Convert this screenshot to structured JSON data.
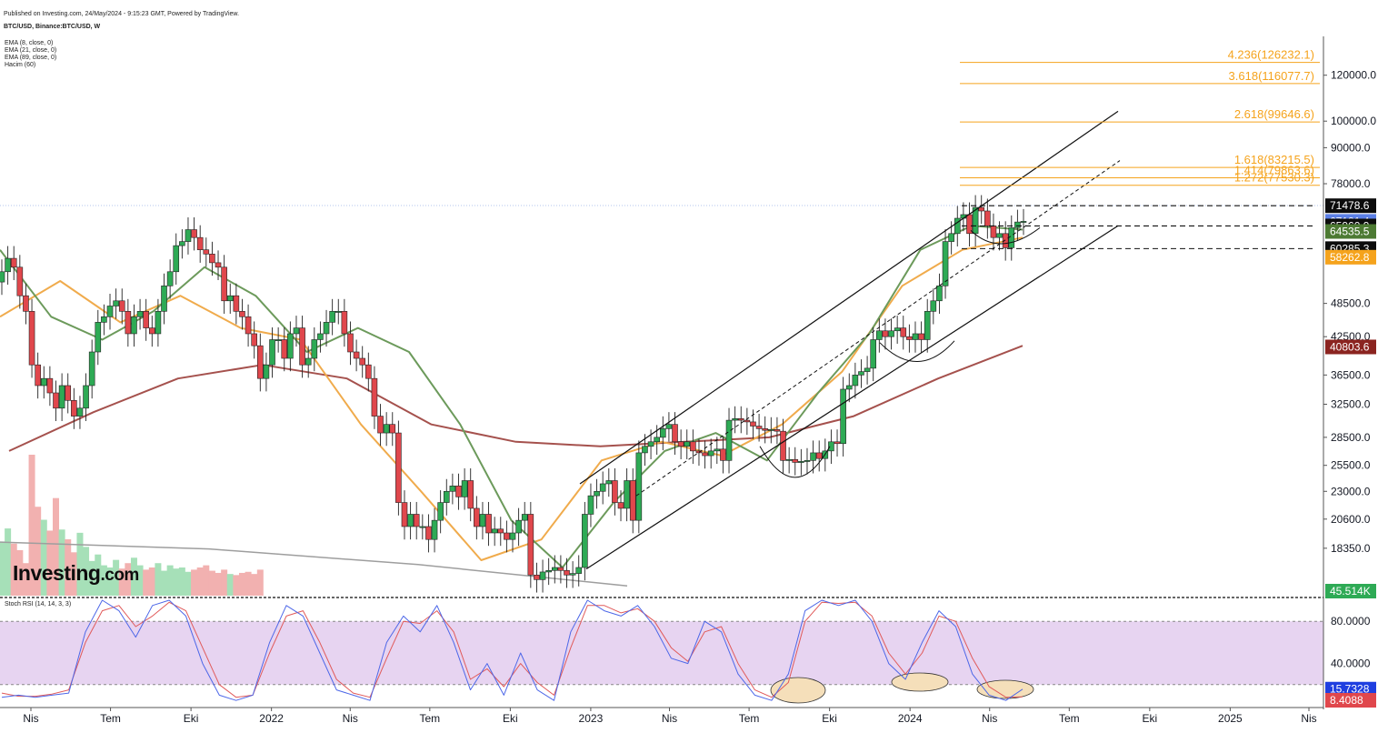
{
  "header": {
    "published": "Published on Investing.com, 24/May/2024 - 9:15:23 GMT, Powered by TradingView.",
    "symbol": "BTC/USD, Binance:BTC/USD, W"
  },
  "indicators": [
    "EMA (8, close, 0)",
    "EMA (21, close, 0)",
    "EMA (89, close, 0)",
    "Hacim (60)"
  ],
  "logo": {
    "text": "Investing",
    "suffix": ".com"
  },
  "rsi_label": "Stoch RSI (14, 14, 3, 3)",
  "colors": {
    "bull": "#2eaa55",
    "bear": "#e0474c",
    "fib": "#f5a31c",
    "ema8": "#6c9a5b",
    "ema21": "#f0ab4c",
    "ema89": "#a5514d",
    "ma200": "#9e9e9e",
    "rsi_k": "#4d67e8",
    "rsi_d": "#e05a5a",
    "rsi_band": "#e3cdef",
    "ellipse": "#f5dfba"
  },
  "chart_data": [
    {
      "type": "candlestick",
      "title": "BTC/USD, Binance:BTC/USD, W",
      "y_scale": "log",
      "ylim": [
        15200,
        140000
      ],
      "y_ticks": [
        "120000.0",
        "100000.0",
        "90000.0",
        "78000.0",
        "48500.0",
        "42500.0",
        "36500.0",
        "32500.0",
        "28500.0",
        "25500.0",
        "23000.0",
        "20600.0",
        "18350.0"
      ],
      "y_tick_values": [
        120000,
        100000,
        90000,
        78000,
        48500,
        42500,
        36500,
        32500,
        28500,
        25500,
        23000,
        20600,
        18350
      ],
      "x_ticks": [
        "Nis",
        "Tem",
        "Eki",
        "2022",
        "Nis",
        "Tem",
        "Eki",
        "2023",
        "Nis",
        "Tem",
        "Eki",
        "2024",
        "Nis",
        "Tem",
        "Eki",
        "2025",
        "Nis"
      ],
      "x_tick_dates": [
        "2021-04-01",
        "2021-07-01",
        "2021-10-01",
        "2022-01-01",
        "2022-04-01",
        "2022-07-01",
        "2022-10-01",
        "2023-01-01",
        "2023-04-01",
        "2023-07-01",
        "2023-10-01",
        "2024-01-01",
        "2024-04-01",
        "2024-07-01",
        "2024-10-01",
        "2025-01-01",
        "2025-04-01"
      ],
      "weekly_closes": [
        55000,
        58000,
        56000,
        50000,
        47000,
        38000,
        35000,
        36000,
        34000,
        32000,
        35000,
        33000,
        31000,
        32000,
        35000,
        40000,
        45000,
        46000,
        48000,
        49000,
        47000,
        43000,
        46000,
        47000,
        44000,
        43000,
        47000,
        52000,
        55000,
        61000,
        62000,
        65000,
        63000,
        60000,
        59000,
        57000,
        56000,
        49000,
        50000,
        47000,
        46000,
        43000,
        41000,
        36000,
        38000,
        42000,
        42000,
        39000,
        43000,
        44000,
        38000,
        39000,
        42000,
        43000,
        45000,
        47000,
        47000,
        43000,
        40000,
        39000,
        38000,
        36000,
        31000,
        29000,
        30000,
        29000,
        22000,
        20000,
        21000,
        20000,
        20000,
        19000,
        20500,
        22000,
        23000,
        23500,
        22500,
        24000,
        21500,
        20000,
        21000,
        19500,
        19800,
        19500,
        19000,
        19500,
        20500,
        21000,
        16500,
        16200,
        16700,
        16800,
        17000,
        16800,
        16500,
        16600,
        17000,
        21000,
        22600,
        23000,
        23700,
        24000,
        22000,
        21500,
        24000,
        20500,
        26800,
        27500,
        28000,
        28500,
        29500,
        30000,
        28000,
        27500,
        28000,
        27000,
        26800,
        26500,
        27000,
        27200,
        26000,
        30500,
        30700,
        30500,
        30300,
        29800,
        29500,
        29300,
        29400,
        29200,
        26000,
        26100,
        25800,
        25900,
        26000,
        26800,
        26200,
        27000,
        28000,
        27800,
        34500,
        35000,
        36500,
        37000,
        37500,
        42000,
        43500,
        42500,
        43500,
        44000,
        42500,
        42000,
        43000,
        42000,
        47000,
        49000,
        52000,
        62000,
        64000,
        68000,
        69000,
        64000,
        71000,
        70000,
        66000,
        63000,
        64000,
        60500,
        65500,
        67000,
        67181
      ],
      "weekly_volume": [
        500,
        620,
        480,
        420,
        300,
        1300,
        820,
        700,
        600,
        900,
        610,
        520,
        400,
        580,
        450,
        320,
        380,
        280,
        260,
        330,
        250,
        300,
        350,
        280,
        240,
        260,
        300,
        230,
        280,
        250,
        260,
        220,
        240,
        260,
        280,
        230,
        210,
        240,
        200,
        190,
        210,
        220,
        200,
        240
      ],
      "ema8_anchor_closes": [
        60000,
        46000,
        42000,
        47000,
        56000,
        50000,
        40000,
        44000,
        40000,
        30000,
        20500,
        17000,
        22000,
        27000,
        29000,
        26000,
        34000,
        43000,
        60000,
        66000,
        65000
      ],
      "ema21_anchor_closes": [
        46000,
        53000,
        45000,
        50000,
        44000,
        42000,
        30000,
        23000,
        17500,
        19000,
        26000,
        28000,
        26500,
        30000,
        37000,
        52000,
        60000,
        63000
      ],
      "ema89_anchor_closes": [
        27000,
        31500,
        36000,
        38000,
        36000,
        30000,
        28000,
        27500,
        28000,
        28500,
        31000,
        36000,
        41000
      ],
      "ma200_anchor_closes": [
        18800,
        18300,
        17200,
        15800
      ],
      "fibonacci": [
        {
          "label": "4.236(126232.1)",
          "value": 126232.1
        },
        {
          "label": "3.618(116077.7)",
          "value": 116077.7
        },
        {
          "label": "2.618(99646.6)",
          "value": 99646.6
        },
        {
          "label": "1.618(83215.5)",
          "value": 83215.5
        },
        {
          "label": "1.414(79863.6)",
          "value": 79863.6
        },
        {
          "label": "1.272(77530.3)",
          "value": 77530.3
        }
      ],
      "price_tags": [
        {
          "label": "71478.6",
          "value": 71478.6,
          "bg": "#0c0c0c"
        },
        {
          "label": "67181.4",
          "value": 67181.4,
          "bg": "#5b7fe6"
        },
        {
          "label": "65960.9",
          "value": 65960.9,
          "bg": "#0c0c0c"
        },
        {
          "label": "64535.5",
          "value": 64535.5,
          "bg": "#4d7a33"
        },
        {
          "label": "60285.3",
          "value": 60285.3,
          "bg": "#0c0c0c"
        },
        {
          "label": "58262.8",
          "value": 58262.8,
          "bg": "#f5a31c"
        },
        {
          "label": "40803.6",
          "value": 40803.6,
          "bg": "#8b2420"
        },
        {
          "label": "45.514K",
          "value": 45514,
          "bg": "#2eaa55"
        }
      ],
      "horizontal_levels": [
        71478.6,
        65960.9,
        60285.3
      ]
    },
    {
      "type": "line",
      "title": "Stoch RSI (14, 14, 3, 3)",
      "ylim": [
        0,
        100
      ],
      "y_ticks": [
        "80.0000",
        "40.0000"
      ],
      "y_tick_values": [
        80,
        40
      ],
      "band": [
        20,
        80
      ],
      "series_k_anchors": [
        8,
        10,
        8,
        10,
        12,
        70,
        100,
        90,
        65,
        95,
        100,
        85,
        40,
        10,
        5,
        10,
        60,
        95,
        85,
        50,
        15,
        10,
        5,
        60,
        85,
        70,
        95,
        60,
        15,
        40,
        10,
        50,
        15,
        5,
        70,
        100,
        90,
        85,
        95,
        75,
        45,
        40,
        80,
        70,
        30,
        10,
        5,
        30,
        90,
        100,
        95,
        100,
        80,
        40,
        25,
        60,
        90,
        75,
        30,
        10,
        5,
        15.7
      ],
      "series_d_anchors": [
        12,
        9,
        9,
        11,
        15,
        60,
        90,
        95,
        75,
        85,
        98,
        90,
        55,
        20,
        8,
        10,
        50,
        85,
        90,
        60,
        25,
        12,
        8,
        45,
        80,
        78,
        90,
        70,
        25,
        35,
        18,
        40,
        22,
        10,
        55,
        95,
        95,
        88,
        92,
        80,
        55,
        42,
        70,
        75,
        40,
        15,
        8,
        22,
        80,
        98,
        97,
        98,
        85,
        50,
        30,
        50,
        85,
        80,
        45,
        18,
        8,
        8.4
      ],
      "value_tags": [
        {
          "label": "15.7328",
          "value": 15.7328,
          "bg": "#1f3fe0"
        },
        {
          "label": "8.4088",
          "value": 8.4088,
          "bg": "#e0474c"
        }
      ]
    }
  ]
}
